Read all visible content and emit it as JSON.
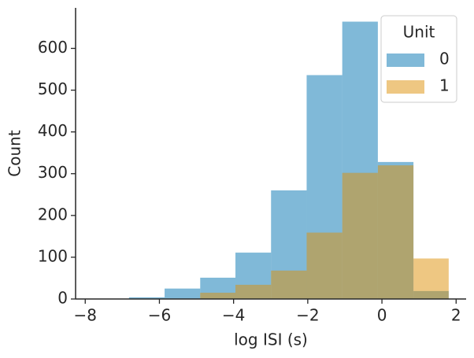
{
  "chart_data": {
    "type": "histogram",
    "x_label": "log ISI (s)",
    "y_label": "Count",
    "bins": [
      -7.78,
      -6.82,
      -5.86,
      -4.9,
      -3.95,
      -2.99,
      -2.03,
      -1.07,
      -0.11,
      0.85,
      1.8
    ],
    "series": [
      {
        "name": "0",
        "color": "#0173b2",
        "values": [
          0,
          4,
          25,
          51,
          111,
          260,
          536,
          664,
          328,
          19
        ]
      },
      {
        "name": "1",
        "color": "#de8f05",
        "values": [
          0,
          0,
          0,
          15,
          34,
          68,
          159,
          302,
          320,
          97
        ]
      }
    ],
    "opacity": 0.5,
    "legend_title": "Unit",
    "legend": "upper right",
    "xlim": [
      -8.26,
      2.27
    ],
    "ylim": [
      0,
      697
    ],
    "xticks": [
      {
        "value": -8,
        "label": "−8"
      },
      {
        "value": -6,
        "label": "−6"
      },
      {
        "value": -4,
        "label": "−4"
      },
      {
        "value": -2,
        "label": "−2"
      },
      0,
      2
    ],
    "yticks": [
      0,
      100,
      200,
      300,
      400,
      500,
      600
    ]
  }
}
